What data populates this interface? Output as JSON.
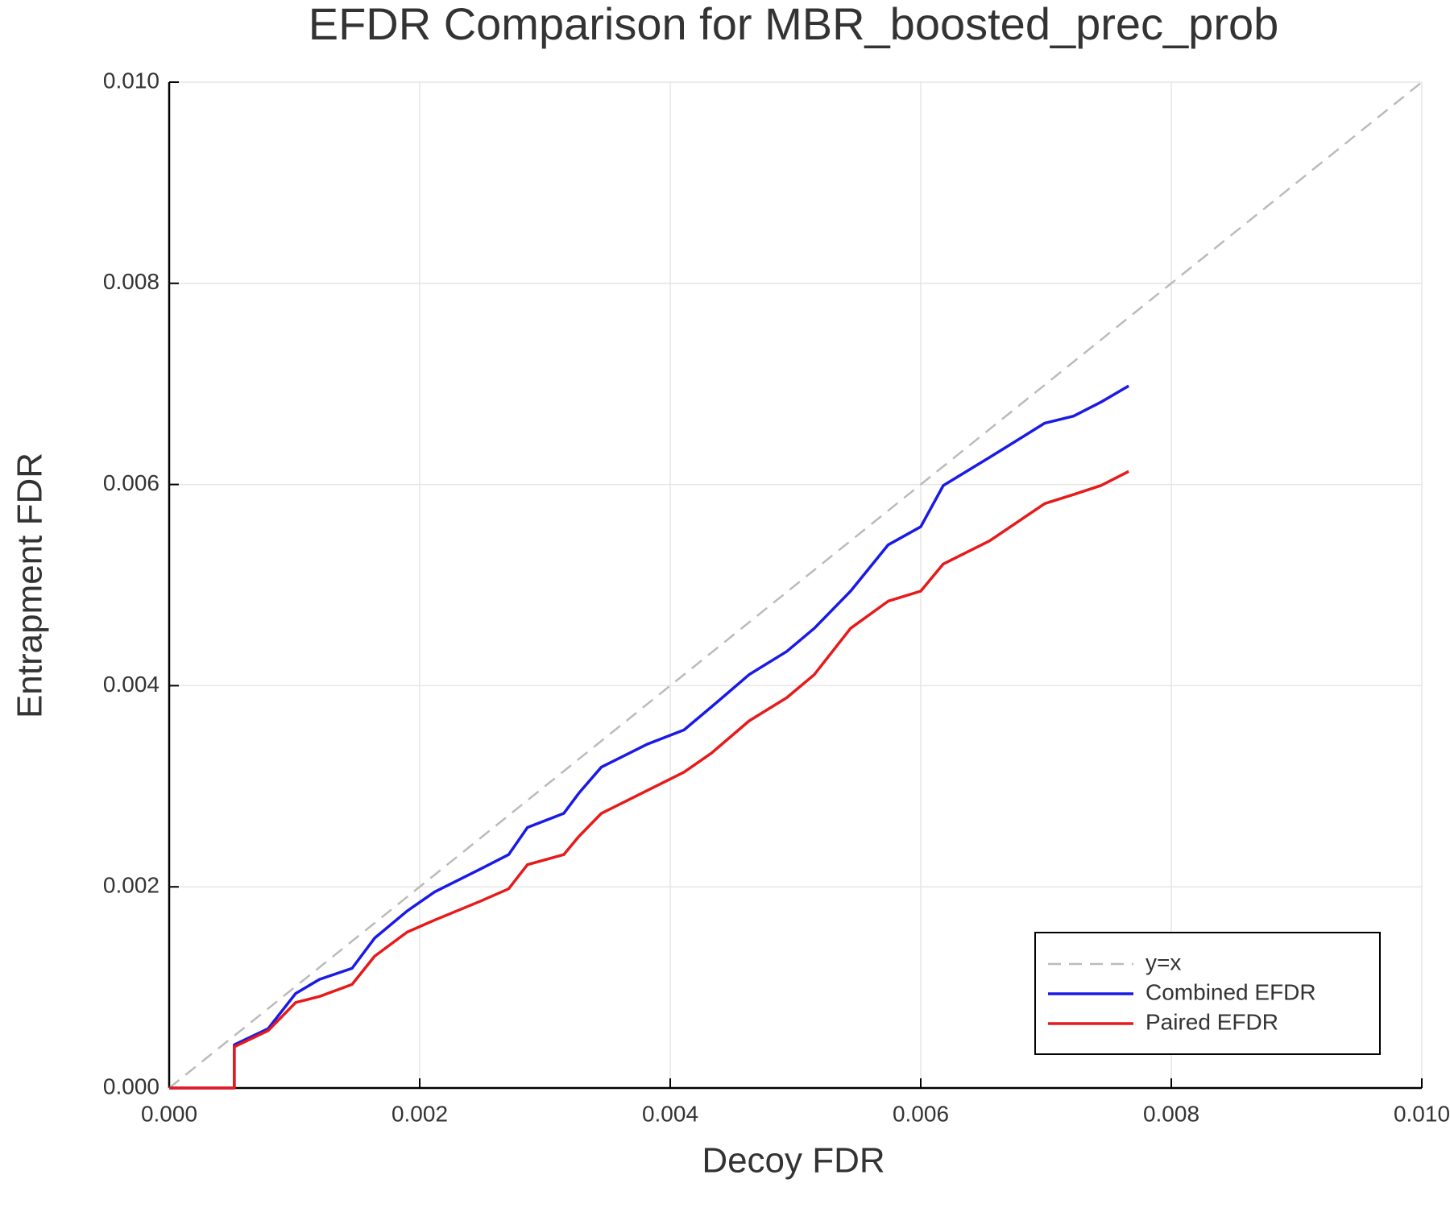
{
  "chart_data": {
    "type": "line",
    "title": "EFDR Comparison for MBR_boosted_prec_prob",
    "x_label": "Decoy FDR",
    "y_label": "Entrapment FDR",
    "xlim": [
      0,
      0.01
    ],
    "ylim": [
      0,
      0.01
    ],
    "xticks": [
      {
        "value": 0,
        "label": "0.000"
      },
      0.002,
      0.004,
      0.006,
      0.008,
      {
        "value": 0.01,
        "label": "0.010"
      }
    ],
    "yticks": [
      {
        "value": 0,
        "label": "0.000"
      },
      0.002,
      0.004,
      0.006,
      0.008,
      {
        "value": 0.01,
        "label": "0.010"
      }
    ],
    "grid": true,
    "legend": "bottom-right",
    "series": [
      {
        "name": "y=x",
        "color": "#bbbbbb",
        "dashed": true,
        "x": [
          0,
          0.01
        ],
        "values": [
          0,
          0.01
        ]
      },
      {
        "name": "Combined EFDR",
        "color": "#1a1ae6",
        "x": [
          0,
          0.00052,
          0.00052,
          0.00079,
          0.00101,
          0.0012,
          0.00146,
          0.00164,
          0.0019,
          0.00212,
          0.00249,
          0.00271,
          0.00286,
          0.00315,
          0.00327,
          0.00345,
          0.00382,
          0.00411,
          0.00433,
          0.00463,
          0.00493,
          0.00515,
          0.00544,
          0.00574,
          0.006,
          0.00618,
          0.00655,
          0.00699,
          0.00722,
          0.00744,
          0.00766
        ],
        "values": [
          0,
          0,
          0.00043,
          0.00059,
          0.00094,
          0.00108,
          0.00119,
          0.00149,
          0.00176,
          0.00195,
          0.00218,
          0.00232,
          0.00259,
          0.00273,
          0.00293,
          0.00319,
          0.00342,
          0.00356,
          0.00379,
          0.00411,
          0.00434,
          0.00457,
          0.00494,
          0.0054,
          0.00558,
          0.00599,
          0.00627,
          0.00661,
          0.00668,
          0.00682,
          0.00698
        ]
      },
      {
        "name": "Paired EFDR",
        "color": "#e61a1a",
        "x": [
          0,
          0.00052,
          0.00052,
          0.00079,
          0.00101,
          0.0012,
          0.00146,
          0.00164,
          0.0019,
          0.00212,
          0.00249,
          0.00271,
          0.00286,
          0.00315,
          0.00327,
          0.00345,
          0.00382,
          0.00411,
          0.00433,
          0.00463,
          0.00493,
          0.00515,
          0.00544,
          0.00574,
          0.006,
          0.00618,
          0.00655,
          0.00699,
          0.00722,
          0.00744,
          0.00766
        ],
        "values": [
          0,
          0,
          0.00041,
          0.00057,
          0.00085,
          0.00091,
          0.00103,
          0.00131,
          0.00155,
          0.00167,
          0.00186,
          0.00198,
          0.00222,
          0.00232,
          0.0025,
          0.00273,
          0.00296,
          0.00314,
          0.00333,
          0.00365,
          0.00388,
          0.00411,
          0.00457,
          0.00484,
          0.00494,
          0.00521,
          0.00544,
          0.00581,
          0.0059,
          0.00599,
          0.00613
        ]
      }
    ]
  }
}
